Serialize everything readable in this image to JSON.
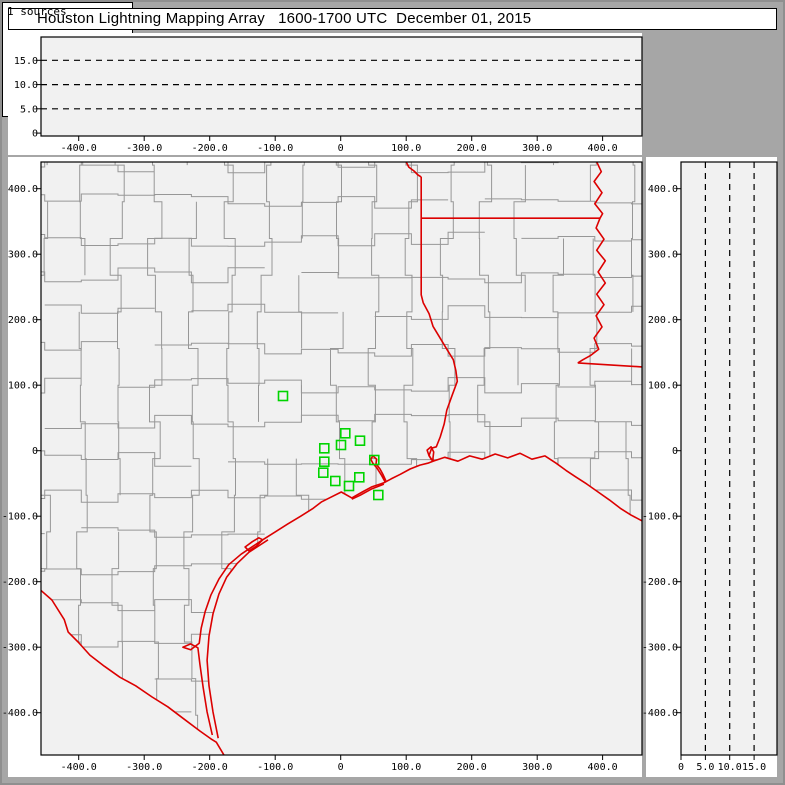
{
  "title": "Houston Lightning Mapping Array   1600-1700 UTC  December 01, 2015",
  "sources": {
    "label": "1 sources",
    "count": 1
  },
  "colors": {
    "frame_gray": "#a6a6a6",
    "panel_white": "#ffffff",
    "plot_bg": "#f1f1f1",
    "county_line": "#979797",
    "state_line": "#dc0000",
    "station_marker": "#00d400",
    "axis": "#000000",
    "dash_line": "#000000"
  },
  "axes": {
    "ew_range": [
      -457.6,
      460.1
    ],
    "ns_range": [
      -464.6,
      440.8
    ],
    "alt_range_ew": [
      -0.6,
      19.8
    ],
    "alt_range_ns": [
      0,
      19.7
    ],
    "alt_dashed_km": [
      5,
      10,
      15
    ],
    "ew_ticks": [
      {
        "v": -400,
        "t": "-400.0"
      },
      {
        "v": -300,
        "t": "-300.0"
      },
      {
        "v": -200,
        "t": "-200.0"
      },
      {
        "v": -100,
        "t": "-100.0"
      },
      {
        "v": 0,
        "t": "0"
      },
      {
        "v": 100,
        "t": "100.0"
      },
      {
        "v": 200,
        "t": "200.0"
      },
      {
        "v": 300,
        "t": "300.0"
      },
      {
        "v": 400,
        "t": "400.0"
      }
    ],
    "ns_ticks": [
      {
        "v": 400,
        "t": "400.0"
      },
      {
        "v": 300,
        "t": "300.0"
      },
      {
        "v": 200,
        "t": "200.0"
      },
      {
        "v": 100,
        "t": "100.0"
      },
      {
        "v": 0,
        "t": "0"
      },
      {
        "v": -100,
        "t": "-100.0"
      },
      {
        "v": -200,
        "t": "-200.0"
      },
      {
        "v": -300,
        "t": "-300.0"
      },
      {
        "v": -400,
        "t": "-400.0"
      }
    ],
    "alt_ticks": [
      {
        "v": 0,
        "t": "0"
      },
      {
        "v": 5,
        "t": "5.0"
      },
      {
        "v": 10,
        "t": "10.0"
      },
      {
        "v": 15,
        "t": "15.0"
      }
    ]
  },
  "map": {
    "stations_km": [
      [
        -88.1,
        83.5
      ],
      [
        7.0,
        26.6
      ],
      [
        29.5,
        15.3
      ],
      [
        0.5,
        8.7
      ],
      [
        -25.0,
        3.7
      ],
      [
        51.3,
        -14.2
      ],
      [
        -25.0,
        -16.8
      ],
      [
        -26.6,
        -33.6
      ],
      [
        28.4,
        -40.6
      ],
      [
        -8.2,
        -46.3
      ],
      [
        12.7,
        -53.9
      ],
      [
        57.4,
        -67.6
      ]
    ],
    "red_lines": {
      "rio_grande": [
        [
          -458,
          -213
        ],
        [
          -441,
          -228
        ],
        [
          -422,
          -258
        ],
        [
          -416,
          -277
        ],
        [
          -401,
          -292
        ],
        [
          -383,
          -312
        ],
        [
          -361,
          -329
        ],
        [
          -337,
          -346
        ],
        [
          -313,
          -359
        ],
        [
          -288,
          -376
        ],
        [
          -264,
          -391
        ],
        [
          -239,
          -410
        ],
        [
          -215,
          -428
        ],
        [
          -198,
          -440
        ],
        [
          -190,
          -445
        ],
        [
          -178,
          -465
        ]
      ],
      "laguna_madre_shore": [
        [
          -196,
          -434
        ],
        [
          -204,
          -399
        ],
        [
          -210,
          -362
        ],
        [
          -215,
          -326
        ],
        [
          -218,
          -301
        ],
        [
          -229,
          -295
        ],
        [
          -241,
          -300
        ],
        [
          -229,
          -304
        ],
        [
          -216,
          -294
        ],
        [
          -213,
          -271
        ],
        [
          -207,
          -246
        ],
        [
          -198,
          -220
        ],
        [
          -186,
          -196
        ],
        [
          -171,
          -174
        ],
        [
          -152,
          -158
        ],
        [
          -134,
          -146
        ],
        [
          -119,
          -136
        ]
      ],
      "padre_island": [
        [
          -187,
          -439
        ],
        [
          -195,
          -399
        ],
        [
          -201,
          -359
        ],
        [
          -204,
          -320
        ],
        [
          -201,
          -283
        ],
        [
          -195,
          -249
        ],
        [
          -186,
          -219
        ],
        [
          -174,
          -193
        ],
        [
          -158,
          -172
        ],
        [
          -140,
          -155
        ],
        [
          -123,
          -144
        ],
        [
          -111,
          -136
        ]
      ],
      "corpus_christi_bay": [
        [
          -119,
          -136
        ],
        [
          -129,
          -146
        ],
        [
          -140,
          -153
        ],
        [
          -146,
          -147
        ],
        [
          -135,
          -139
        ],
        [
          -125,
          -133
        ],
        [
          -119,
          -136
        ]
      ],
      "gulf_coast": [
        [
          -119,
          -136
        ],
        [
          -100,
          -124
        ],
        [
          -81,
          -112
        ],
        [
          -61,
          -100
        ],
        [
          -42,
          -88
        ],
        [
          -29,
          -78
        ],
        [
          -15,
          -71
        ],
        [
          1,
          -63
        ],
        [
          17,
          -72
        ],
        [
          33,
          -63
        ],
        [
          48,
          -55
        ],
        [
          66,
          -49
        ],
        [
          77,
          -43
        ],
        [
          91,
          -36
        ],
        [
          106,
          -28
        ],
        [
          121,
          -22
        ],
        [
          133,
          -19
        ],
        [
          141,
          -16
        ],
        [
          159,
          -10
        ],
        [
          179,
          -16
        ],
        [
          197,
          -8
        ],
        [
          216,
          -13
        ],
        [
          236,
          -5
        ],
        [
          255,
          -11
        ],
        [
          274,
          -4
        ],
        [
          292,
          -13
        ],
        [
          312,
          -8
        ],
        [
          329,
          -19
        ],
        [
          344,
          -30
        ],
        [
          359,
          -40
        ],
        [
          376,
          -51
        ],
        [
          393,
          -63
        ],
        [
          410,
          -75
        ],
        [
          427,
          -88
        ],
        [
          443,
          -98
        ],
        [
          460,
          -107
        ]
      ],
      "galveston_bay": [
        [
          68,
          -48
        ],
        [
          62,
          -37
        ],
        [
          55,
          -26
        ],
        [
          49,
          -19
        ],
        [
          46,
          -13
        ],
        [
          49,
          -8
        ],
        [
          55,
          -13
        ],
        [
          54,
          -20
        ],
        [
          60,
          -28
        ],
        [
          65,
          -37
        ],
        [
          69,
          -46
        ]
      ],
      "west_bay": [
        [
          66,
          -51
        ],
        [
          48,
          -58
        ],
        [
          30,
          -68
        ],
        [
          17,
          -74
        ]
      ],
      "sabine_lake": [
        [
          141,
          -16
        ],
        [
          135,
          -8
        ],
        [
          132,
          1
        ],
        [
          138,
          6
        ],
        [
          142,
          -2
        ],
        [
          141,
          -11
        ],
        [
          141,
          -16
        ]
      ],
      "tx_la_border": [
        [
          123,
          418
        ],
        [
          123,
          238
        ],
        [
          126,
          226
        ],
        [
          135,
          209
        ],
        [
          141,
          190
        ],
        [
          150,
          175
        ],
        [
          162,
          155
        ],
        [
          172,
          139
        ],
        [
          176,
          122
        ],
        [
          178,
          106
        ],
        [
          170,
          84
        ],
        [
          162,
          62
        ],
        [
          158,
          41
        ],
        [
          152,
          21
        ],
        [
          146,
          6
        ],
        [
          139,
          4
        ],
        [
          135,
          -7
        ],
        [
          138,
          -13
        ],
        [
          141,
          -16
        ]
      ],
      "red_river": [
        [
          100,
          441
        ],
        [
          104,
          433
        ],
        [
          112,
          427
        ],
        [
          118,
          421
        ],
        [
          123,
          418
        ]
      ],
      "tx_ar_border_33n": [
        [
          123,
          355
        ],
        [
          396,
          355
        ]
      ],
      "mississippi_river": [
        [
          391,
          441
        ],
        [
          398,
          426
        ],
        [
          387,
          411
        ],
        [
          399,
          394
        ],
        [
          388,
          377
        ],
        [
          400,
          362
        ],
        [
          396,
          355
        ],
        [
          390,
          340
        ],
        [
          402,
          323
        ],
        [
          391,
          306
        ],
        [
          404,
          290
        ],
        [
          393,
          273
        ],
        [
          404,
          256
        ],
        [
          391,
          239
        ],
        [
          402,
          223
        ],
        [
          390,
          206
        ],
        [
          399,
          189
        ],
        [
          387,
          172
        ],
        [
          394,
          155
        ],
        [
          381,
          145
        ],
        [
          370,
          139
        ],
        [
          362,
          134
        ]
      ],
      "la_ms_border": [
        [
          362,
          134
        ],
        [
          460,
          128
        ]
      ]
    },
    "fill_regions": {
      "gulf": [
        [
          460,
          -107
        ],
        [
          443,
          -98
        ],
        [
          427,
          -88
        ],
        [
          410,
          -75
        ],
        [
          393,
          -63
        ],
        [
          376,
          -51
        ],
        [
          359,
          -40
        ],
        [
          344,
          -30
        ],
        [
          329,
          -19
        ],
        [
          312,
          -8
        ],
        [
          292,
          -13
        ],
        [
          274,
          -4
        ],
        [
          255,
          -11
        ],
        [
          236,
          -5
        ],
        [
          216,
          -13
        ],
        [
          197,
          -8
        ],
        [
          179,
          -16
        ],
        [
          159,
          -10
        ],
        [
          141,
          -16
        ],
        [
          133,
          -19
        ],
        [
          121,
          -22
        ],
        [
          106,
          -28
        ],
        [
          91,
          -36
        ],
        [
          77,
          -43
        ],
        [
          66,
          -49
        ],
        [
          48,
          -55
        ],
        [
          33,
          -63
        ],
        [
          17,
          -72
        ],
        [
          1,
          -63
        ],
        [
          -15,
          -71
        ],
        [
          -29,
          -78
        ],
        [
          -42,
          -88
        ],
        [
          -61,
          -100
        ],
        [
          -81,
          -112
        ],
        [
          -100,
          -124
        ],
        [
          -111,
          -136
        ],
        [
          -123,
          -144
        ],
        [
          -140,
          -155
        ],
        [
          -158,
          -172
        ],
        [
          -174,
          -193
        ],
        [
          -186,
          -219
        ],
        [
          -195,
          -249
        ],
        [
          -201,
          -283
        ],
        [
          -204,
          -320
        ],
        [
          -201,
          -359
        ],
        [
          -195,
          -399
        ],
        [
          -187,
          -439
        ],
        [
          -190,
          -445
        ],
        [
          -178,
          -465
        ],
        [
          460,
          -465
        ]
      ],
      "mexico": [
        [
          -458,
          -213
        ],
        [
          -441,
          -228
        ],
        [
          -422,
          -258
        ],
        [
          -416,
          -277
        ],
        [
          -401,
          -292
        ],
        [
          -383,
          -312
        ],
        [
          -361,
          -329
        ],
        [
          -337,
          -346
        ],
        [
          -313,
          -359
        ],
        [
          -288,
          -376
        ],
        [
          -264,
          -391
        ],
        [
          -239,
          -410
        ],
        [
          -215,
          -428
        ],
        [
          -198,
          -440
        ],
        [
          -190,
          -445
        ],
        [
          -178,
          -465
        ],
        [
          -458,
          -465
        ]
      ]
    }
  },
  "chart_data": {
    "type": "scatter",
    "title": "Houston Lightning Mapping Array   1600-1700 UTC  December 01, 2015",
    "sources_count": 1,
    "panels": [
      {
        "name": "altitude-vs-east-west",
        "xlabel_ticks": [
          -400,
          -300,
          -200,
          -100,
          0,
          100,
          200,
          300,
          400
        ],
        "ylim": [
          0,
          20
        ],
        "y_gridlines_dashed": [
          5,
          10,
          15
        ],
        "points": []
      },
      {
        "name": "plan-view-map",
        "xlim": [
          -458,
          460
        ],
        "ylim": [
          -465,
          441
        ],
        "x_ticks": [
          -400,
          -300,
          -200,
          -100,
          0,
          100,
          200,
          300,
          400
        ],
        "y_ticks": [
          400,
          300,
          200,
          100,
          0,
          -100,
          -200,
          -300,
          -400
        ],
        "station_markers_km": [
          [
            -88.1,
            83.5
          ],
          [
            7.0,
            26.6
          ],
          [
            29.5,
            15.3
          ],
          [
            0.5,
            8.7
          ],
          [
            -25.0,
            3.7
          ],
          [
            51.3,
            -14.2
          ],
          [
            -25.0,
            -16.8
          ],
          [
            -26.6,
            -33.6
          ],
          [
            28.4,
            -40.6
          ],
          [
            -8.2,
            -46.3
          ],
          [
            12.7,
            -53.9
          ],
          [
            57.4,
            -67.6
          ]
        ]
      },
      {
        "name": "altitude-vs-north-south",
        "xlim": [
          0,
          20
        ],
        "xlabel_ticks": [
          0,
          5,
          10,
          15
        ],
        "x_gridlines_dashed": [
          5,
          10,
          15
        ],
        "points": []
      }
    ],
    "legend_position": "none",
    "grid": "dashed altitude reference lines only"
  }
}
